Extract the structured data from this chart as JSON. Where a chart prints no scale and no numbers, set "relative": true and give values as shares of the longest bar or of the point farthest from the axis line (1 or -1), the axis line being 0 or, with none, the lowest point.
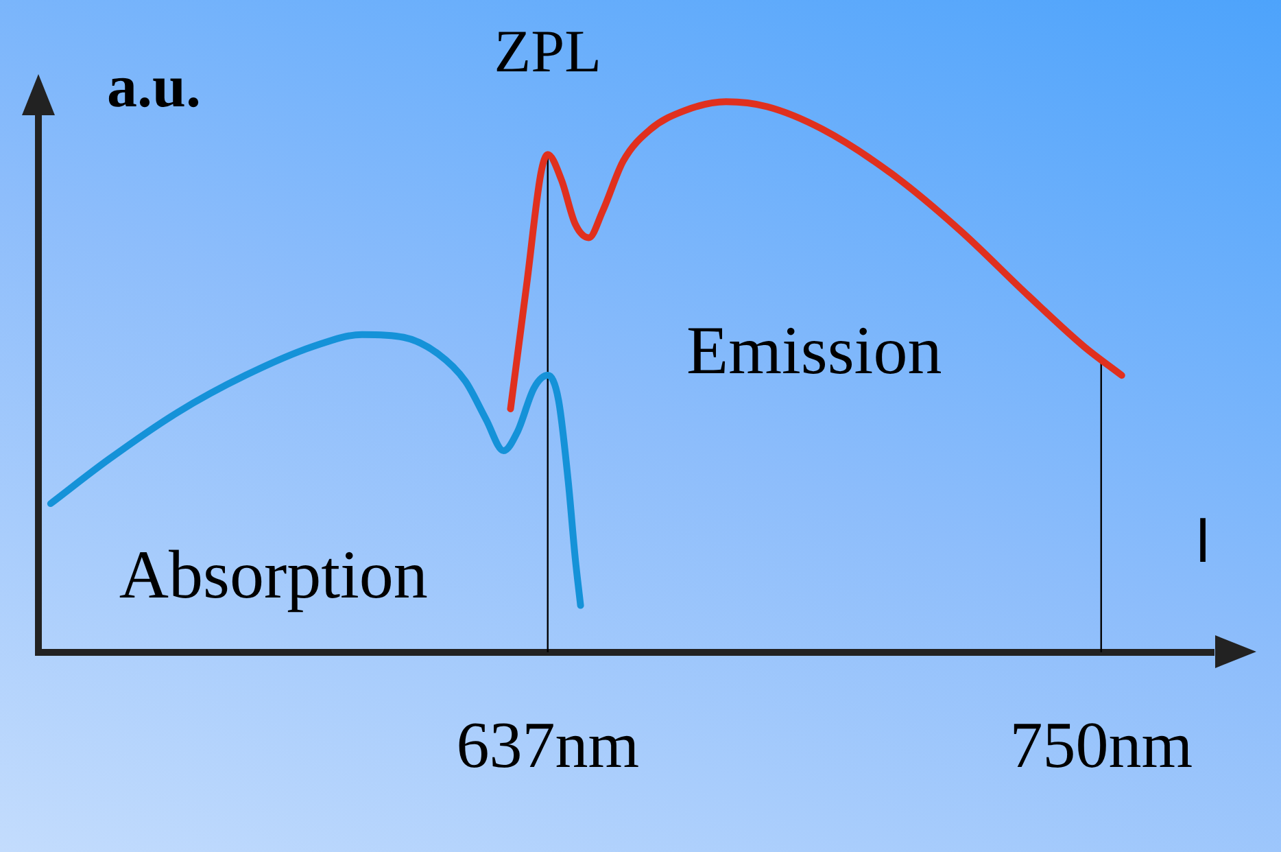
{
  "chart_data": {
    "type": "line",
    "relative": true,
    "xlabel": "l",
    "ylabel": "a.u.",
    "xlim": [
      533,
      773
    ],
    "xticks": [
      {
        "value": 637,
        "label": "637nm"
      },
      {
        "value": 750,
        "label": "750nm"
      }
    ],
    "grid": false,
    "legend": false,
    "marker": "none",
    "line_style": "solid",
    "ref_lines": [
      {
        "axis": "x",
        "value": 637,
        "label": "ZPL",
        "color": "#000000"
      },
      {
        "axis": "x",
        "value": 750,
        "label": null,
        "color": "#000000"
      }
    ],
    "series": [
      {
        "name": "Absorption",
        "color": "#1592d8",
        "x": [
          535.5,
          547.3,
          561.3,
          575.3,
          589.3,
          599.1,
          607.6,
          614.6,
          620.2,
          624.4,
          628.0,
          630.8,
          634.2,
          637.0,
          639.2,
          641.2,
          642.6,
          643.7
        ],
        "values": [
          0.27,
          0.35,
          0.435,
          0.503,
          0.556,
          0.577,
          0.572,
          0.542,
          0.492,
          0.423,
          0.366,
          0.4,
          0.48,
          0.503,
          0.458,
          0.309,
          0.172,
          0.085
        ]
      },
      {
        "name": "Emission",
        "color": "#e0301e",
        "x": [
          629.4,
          632.8,
          635.6,
          637.0,
          639.8,
          642.6,
          645.4,
          648.2,
          652.4,
          658.0,
          665.0,
          673.4,
          681.8,
          693.1,
          707.1,
          721.1,
          735.1,
          746.4,
          754.2
        ],
        "values": [
          0.442,
          0.675,
          0.87,
          0.904,
          0.858,
          0.778,
          0.753,
          0.801,
          0.892,
          0.95,
          0.984,
          1,
          0.991,
          0.95,
          0.87,
          0.767,
          0.648,
          0.556,
          0.503
        ]
      }
    ]
  }
}
